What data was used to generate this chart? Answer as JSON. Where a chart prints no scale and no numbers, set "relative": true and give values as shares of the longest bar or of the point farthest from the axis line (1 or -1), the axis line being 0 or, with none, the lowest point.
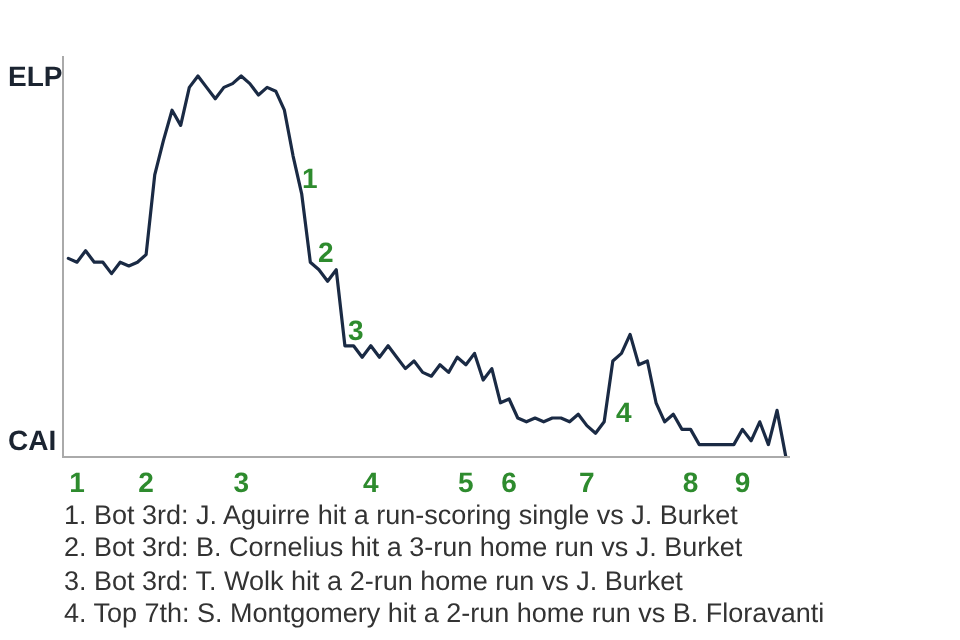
{
  "chart_data": {
    "type": "line",
    "relative": true,
    "categories": [
      null,
      "1",
      null,
      null,
      null,
      null,
      null,
      null,
      null,
      "2",
      null,
      null,
      null,
      null,
      null,
      null,
      null,
      null,
      null,
      null,
      "3",
      null,
      null,
      null,
      null,
      null,
      null,
      null,
      null,
      null,
      null,
      null,
      null,
      null,
      null,
      "4",
      null,
      null,
      null,
      null,
      null,
      null,
      null,
      null,
      null,
      null,
      "5",
      null,
      null,
      null,
      null,
      "6",
      null,
      null,
      null,
      null,
      null,
      null,
      null,
      null,
      "7",
      null,
      null,
      null,
      null,
      null,
      null,
      null,
      null,
      null,
      null,
      null,
      "8",
      null,
      null,
      null,
      null,
      null,
      "9",
      null,
      null,
      null,
      null,
      null
    ],
    "series": [
      {
        "color": "#1a2a44",
        "values": [
          0.52,
          0.51,
          0.54,
          0.51,
          0.51,
          0.48,
          0.51,
          0.5,
          0.51,
          0.53,
          0.74,
          0.83,
          0.91,
          0.87,
          0.97,
          1,
          0.97,
          0.94,
          0.97,
          0.98,
          1,
          0.98,
          0.95,
          0.97,
          0.96,
          0.91,
          0.79,
          0.69,
          0.51,
          0.49,
          0.46,
          0.49,
          0.29,
          0.29,
          0.26,
          0.29,
          0.26,
          0.29,
          0.26,
          0.23,
          0.25,
          0.22,
          0.21,
          0.24,
          0.22,
          0.26,
          0.24,
          0.27,
          0.2,
          0.23,
          0.14,
          0.15,
          0.1,
          0.09,
          0.1,
          0.09,
          0.1,
          0.1,
          0.09,
          0.11,
          0.08,
          0.06,
          0.09,
          0.25,
          0.27,
          0.32,
          0.24,
          0.25,
          0.14,
          0.09,
          0.11,
          0.07,
          0.07,
          0.03,
          0.03,
          0.03,
          0.03,
          0.03,
          0.07,
          0.04,
          0.09,
          0.03,
          0.12,
          0
        ]
      }
    ],
    "marker": "none",
    "line_style": "solid",
    "annotations": [
      "ELP",
      "CAI",
      "1",
      "2",
      "3",
      "4",
      "1. Bot 3rd: J. Aguirre hit a run-scoring single vs J. Burket",
      "2. Bot 3rd: B. Cornelius hit a 3-run home run vs J. Burket",
      "3. Bot 3rd: T. Wolk hit a 2-run home run vs J. Burket",
      "4. Top 7th: S. Montgomery hit a 2-run home run vs B. Floravanti"
    ]
  }
}
